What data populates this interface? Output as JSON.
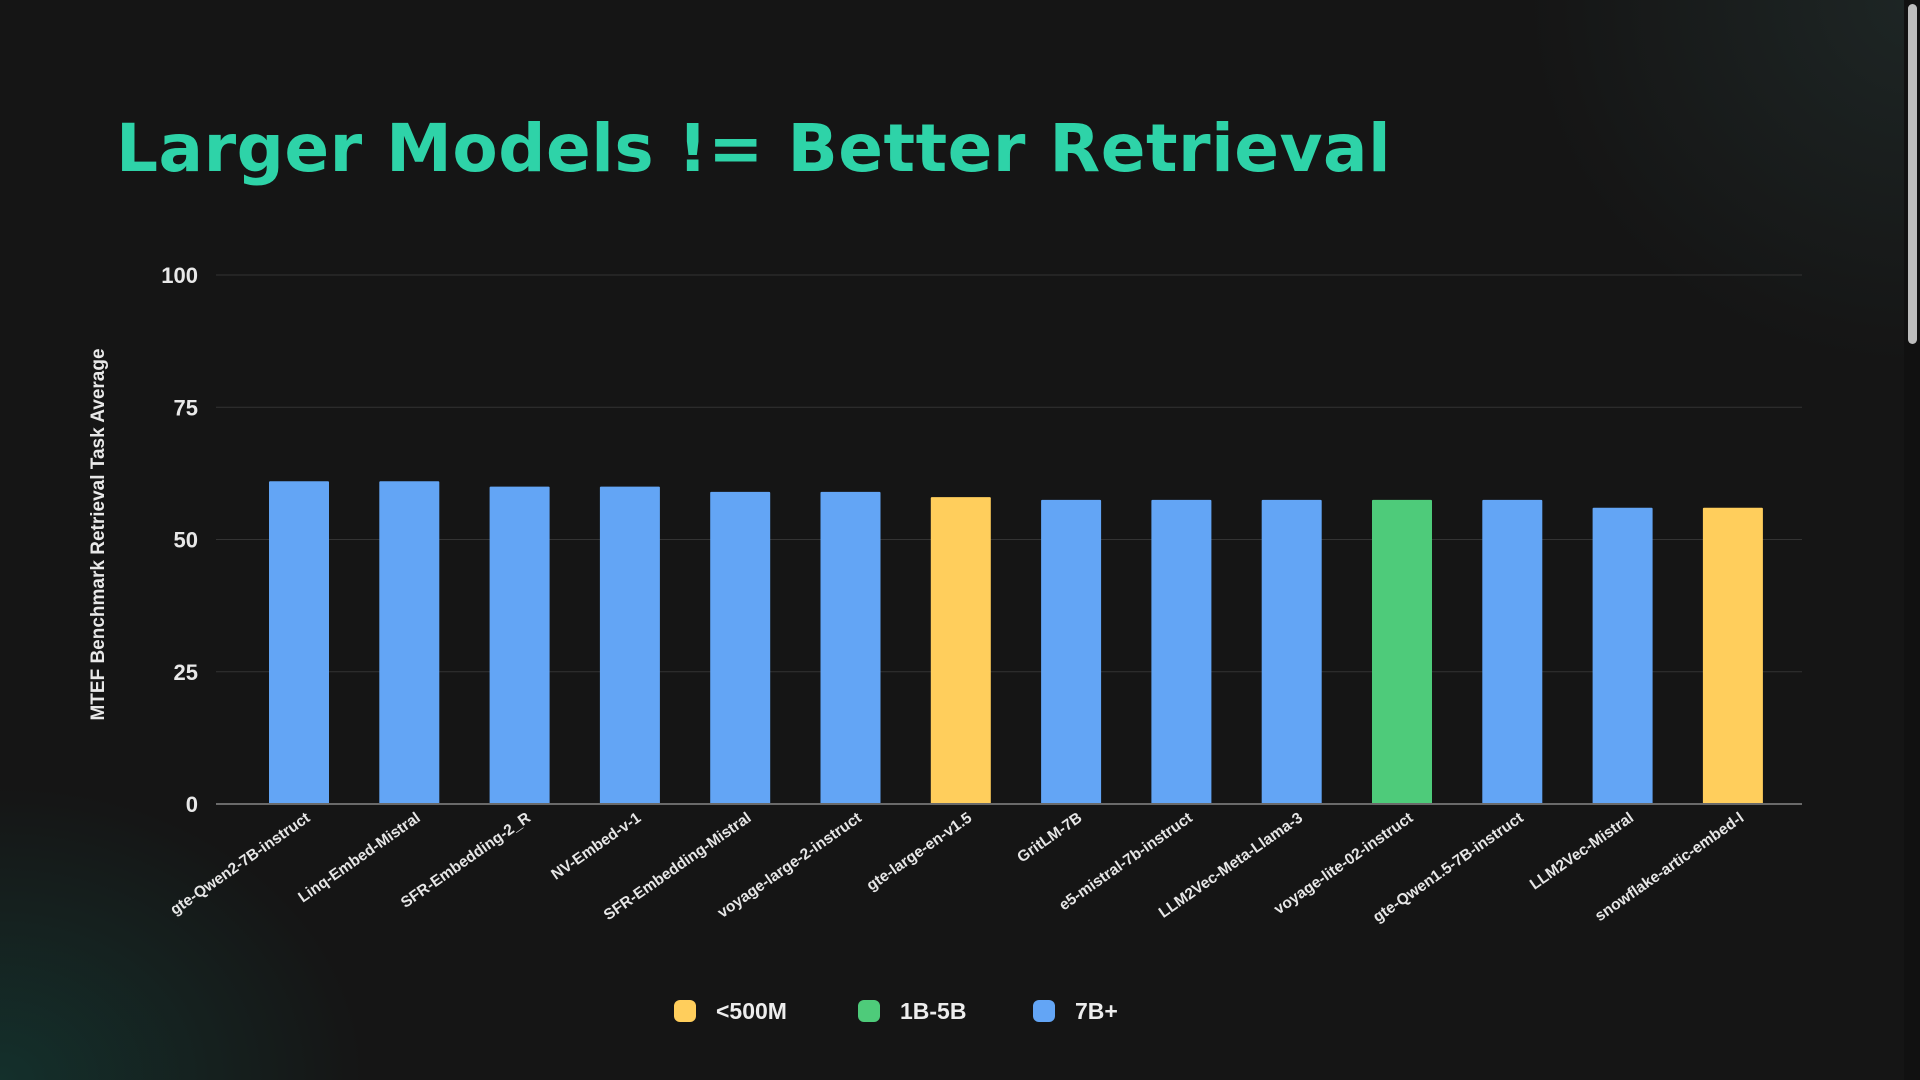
{
  "slide": {
    "title": "Larger Models != Better Retrieval"
  },
  "chart_data": {
    "type": "bar",
    "title": "",
    "xlabel": "",
    "ylabel": "MTEF Benchmark Retrieval Task Average",
    "ylim": [
      0,
      100
    ],
    "yticks": [
      0,
      25,
      50,
      75,
      100
    ],
    "grid": true,
    "legend_position": "bottom-center",
    "categories": [
      "gte-Qwen2-7B-instruct",
      "Linq-Embed-Mistral",
      "SFR-Embedding-2_R",
      "NV-Embed-v-1",
      "SFR-Embedding-Mistral",
      "voyage-large-2-instruct",
      "gte-large-en-v1.5",
      "GritLM-7B",
      "e5-mistral-7b-instruct",
      "LLM2Vec-Meta-Llama-3",
      "voyage-lite-02-instruct",
      "gte-Qwen1.5-7B-instruct",
      "LLM2Vec-Mistral",
      "snowflake-artic-embed-l"
    ],
    "values": [
      61,
      61,
      60,
      60,
      59,
      59,
      58,
      57.5,
      57.5,
      57.5,
      57.5,
      57.5,
      56,
      56
    ],
    "size_group": [
      "7B+",
      "7B+",
      "7B+",
      "7B+",
      "7B+",
      "7B+",
      "<500M",
      "7B+",
      "7B+",
      "7B+",
      "1B-5B",
      "7B+",
      "7B+",
      "<500M"
    ],
    "legend": [
      {
        "label": "<500M",
        "color": "#ffce5c"
      },
      {
        "label": "1B-5B",
        "color": "#4ecb7a"
      },
      {
        "label": "7B+",
        "color": "#63a5f5"
      }
    ]
  }
}
